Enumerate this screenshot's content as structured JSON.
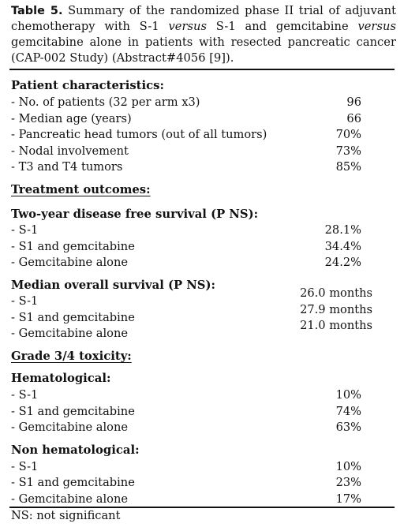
{
  "caption": {
    "label": "Table 5.",
    "part1": " Summary of the randomized phase II trial of adjuvant chemotherapy with S-1 ",
    "italic1": "versus",
    "part2": " S-1 and gemcitabine ",
    "italic2": "versus",
    "part3": " gemcitabine alone in patients with resected pancreatic cancer (CAP-002 Study) (Abstract#4056 [9])."
  },
  "patient": {
    "heading": "Patient characteristics:",
    "rows": [
      {
        "label": "- No. of patients (32 per arm x3)",
        "value": "96"
      },
      {
        "label": "- Median age (years)",
        "value": "66"
      },
      {
        "label": "- Pancreatic head tumors (out of all tumors)",
        "value": "70%"
      },
      {
        "label": "- Nodal involvement",
        "value": "73%"
      },
      {
        "label": "- T3 and T4 tumors",
        "value": "85%"
      }
    ]
  },
  "outcomes": {
    "heading": "Treatment outcomes:",
    "dfs": {
      "heading": "Two-year disease free survival (P NS):",
      "rows": [
        {
          "label": "- S-1",
          "value": "28.1%"
        },
        {
          "label": "- S1 and gemcitabine",
          "value": "34.4%"
        },
        {
          "label": "- Gemcitabine alone",
          "value": "24.2%"
        }
      ]
    },
    "os": {
      "heading": "Median overall survival (P NS):",
      "labels": [
        "- S-1",
        "- S1 and gemcitabine",
        "- Gemcitabine alone"
      ],
      "values": [
        "26.0 months",
        "27.9 months",
        "21.0 months"
      ]
    }
  },
  "toxicity": {
    "heading": "Grade 3/4 toxicity:",
    "hematological": {
      "heading": "Hematological:",
      "rows": [
        {
          "label": "- S-1",
          "value": "10%"
        },
        {
          "label": "- S1 and gemcitabine",
          "value": "74%"
        },
        {
          "label": "- Gemcitabine alone",
          "value": "63%"
        }
      ]
    },
    "non_hematological": {
      "heading": "Non hematological:",
      "rows": [
        {
          "label": "- S-1",
          "value": "10%"
        },
        {
          "label": "- S1 and gemcitabine",
          "value": "23%"
        },
        {
          "label": "- Gemcitabine alone",
          "value": "17%"
        }
      ]
    }
  },
  "footnote": "NS: not significant"
}
